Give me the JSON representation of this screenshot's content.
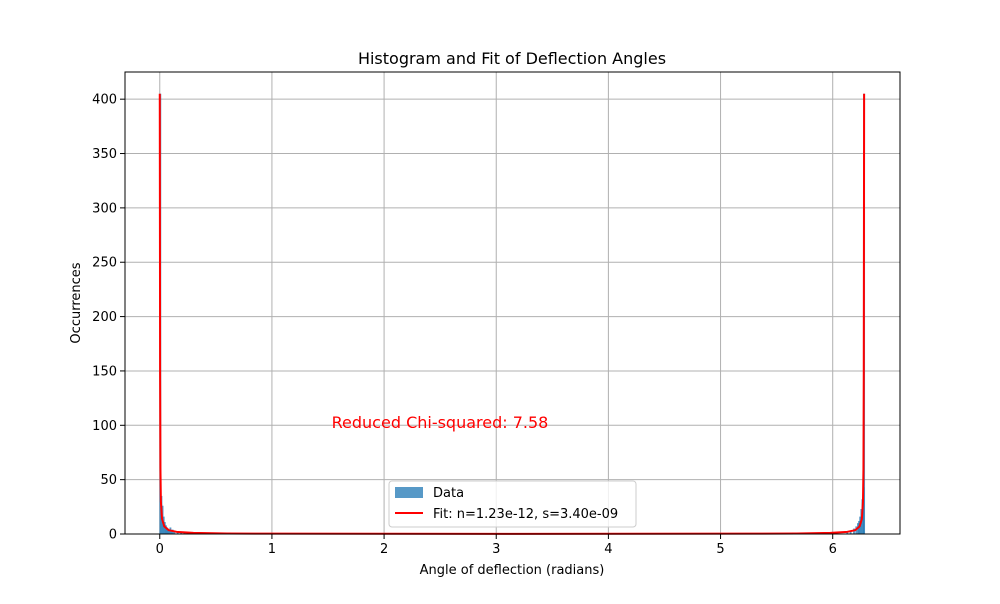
{
  "chart_data": {
    "type": "bar",
    "title": "Histogram and Fit of Deflection Angles",
    "xlabel": "Angle of deflection (radians)",
    "ylabel": "Occurrences",
    "xlim": [
      -0.31,
      6.6
    ],
    "ylim": [
      0,
      425
    ],
    "xticks": [
      0,
      1,
      2,
      3,
      4,
      5,
      6
    ],
    "yticks": [
      0,
      50,
      100,
      150,
      200,
      250,
      300,
      350,
      400
    ],
    "grid": true,
    "legend_position": "bottom-center",
    "annotation": "Reduced Chi-squared: 7.58",
    "colors": {
      "data": "#1f77b4",
      "fit": "#ff0000",
      "annotation": "#ff0000",
      "grid": "#b0b0b0"
    },
    "series": [
      {
        "name": "Data",
        "type": "histogram",
        "bins": [
          {
            "x": 0.005,
            "value": 405
          },
          {
            "x": 0.015,
            "value": 35
          },
          {
            "x": 0.025,
            "value": 26
          },
          {
            "x": 0.035,
            "value": 16
          },
          {
            "x": 0.045,
            "value": 11
          },
          {
            "x": 0.055,
            "value": 8
          },
          {
            "x": 0.065,
            "value": 6
          },
          {
            "x": 0.075,
            "value": 5
          },
          {
            "x": 0.085,
            "value": 4
          },
          {
            "x": 0.095,
            "value": 6
          },
          {
            "x": 0.105,
            "value": 3
          },
          {
            "x": 0.115,
            "value": 4
          },
          {
            "x": 0.13,
            "value": 2
          },
          {
            "x": 0.16,
            "value": 2
          },
          {
            "x": 0.19,
            "value": 1
          },
          {
            "x": 0.22,
            "value": 1
          },
          {
            "x": 6.13,
            "value": 2
          },
          {
            "x": 6.16,
            "value": 3
          },
          {
            "x": 6.19,
            "value": 5
          },
          {
            "x": 6.21,
            "value": 7
          },
          {
            "x": 6.225,
            "value": 10
          },
          {
            "x": 6.235,
            "value": 12
          },
          {
            "x": 6.245,
            "value": 16
          },
          {
            "x": 6.255,
            "value": 23
          },
          {
            "x": 6.265,
            "value": 32
          },
          {
            "x": 6.275,
            "value": 43
          },
          {
            "x": 6.28,
            "value": 405
          }
        ]
      },
      {
        "name": "Fit: n=1.23e-12, s=3.40e-09",
        "type": "line",
        "points": [
          [
            0.0,
            405
          ],
          [
            0.003,
            150
          ],
          [
            0.006,
            60
          ],
          [
            0.01,
            30
          ],
          [
            0.02,
            14
          ],
          [
            0.04,
            7
          ],
          [
            0.08,
            3.5
          ],
          [
            0.15,
            2
          ],
          [
            0.3,
            1
          ],
          [
            0.6,
            0.5
          ],
          [
            1.0,
            0.3
          ],
          [
            3.14,
            0.1
          ],
          [
            5.28,
            0.3
          ],
          [
            5.68,
            0.5
          ],
          [
            5.98,
            1
          ],
          [
            6.13,
            2
          ],
          [
            6.2,
            3.5
          ],
          [
            6.24,
            7
          ],
          [
            6.26,
            14
          ],
          [
            6.27,
            30
          ],
          [
            6.274,
            60
          ],
          [
            6.277,
            150
          ],
          [
            6.28,
            405
          ]
        ]
      }
    ]
  }
}
